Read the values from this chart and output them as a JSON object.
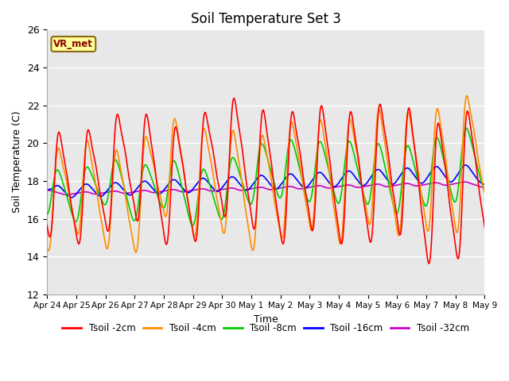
{
  "title": "Soil Temperature Set 3",
  "xlabel": "Time",
  "ylabel": "Soil Temperature (C)",
  "ylim": [
    12,
    26
  ],
  "yticks": [
    12,
    14,
    16,
    18,
    20,
    22,
    24,
    26
  ],
  "xtick_labels": [
    "Apr 24",
    "Apr 25",
    "Apr 26",
    "Apr 27",
    "Apr 28",
    "Apr 29",
    "Apr 30",
    "May 1",
    "May 2",
    "May 3",
    "May 4",
    "May 5",
    "May 6",
    "May 7",
    "May 8",
    "May 9"
  ],
  "colors": {
    "Tsoil -2cm": "#ff0000",
    "Tsoil -4cm": "#ff8c00",
    "Tsoil -8cm": "#00cc00",
    "Tsoil -16cm": "#0000ff",
    "Tsoil -32cm": "#cc00cc"
  },
  "line_width": 1.2,
  "plot_bg": "#e8e8e8",
  "annotation_text": "VR_met",
  "annotation_bg": "#ffff99",
  "annotation_border": "#8b6914"
}
